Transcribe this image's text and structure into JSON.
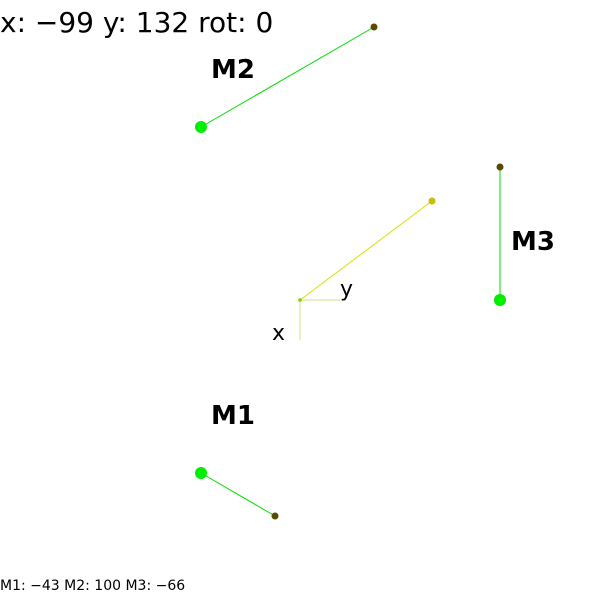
{
  "pose_readout": {
    "x_label": "x:",
    "x_value": "−99",
    "y_label": "y:",
    "y_value": "132",
    "rot_label": "rot:",
    "rot_value": "0",
    "text": "x: −99 y: 132 rot: 0"
  },
  "axes": {
    "x_label": "x",
    "y_label": "y",
    "heading_color": "#dddd00",
    "axis_color": "#c8e68c"
  },
  "motors": [
    {
      "id": "m1",
      "label": "M1",
      "value": -43
    },
    {
      "id": "m2",
      "label": "M2",
      "value": 100
    },
    {
      "id": "m3",
      "label": "M3",
      "value": -66
    }
  ],
  "motor_readout": {
    "text": "M1: −43 M2: 100 M3: −66"
  },
  "colors": {
    "motor_line": "#00dd00",
    "motor_base": "#00ee00",
    "motor_tip": "#5a4a00",
    "heading_tip": "#c8c000",
    "text": "#000000",
    "background": "#ffffff"
  }
}
